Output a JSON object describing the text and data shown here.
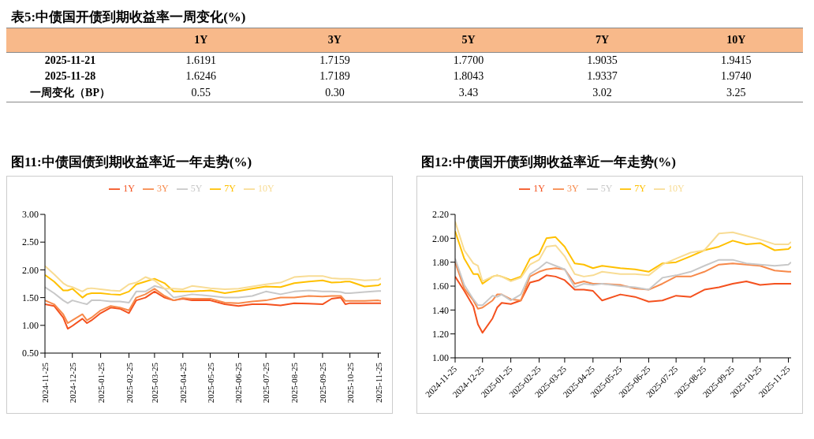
{
  "chart_data": [
    {
      "type": "heatmap",
      "title": "表5:中债国开债到期收益率一周变化(%)",
      "categories": [
        "1Y",
        "3Y",
        "5Y",
        "7Y",
        "10Y"
      ],
      "y_categories": [
        "2025-11-21",
        "2025-11-28",
        "一周变化（BP）"
      ],
      "cells": [
        [
          1.6191,
          1.7159,
          1.77,
          1.9035,
          1.9415
        ],
        [
          1.6246,
          1.7189,
          1.8043,
          1.9337,
          1.974
        ],
        [
          0.55,
          0.3,
          3.43,
          3.02,
          3.25
        ]
      ],
      "cell_labels": [
        [
          "1.6191",
          "1.7159",
          "1.7700",
          "1.9035",
          "1.9415"
        ],
        [
          "1.6246",
          "1.7189",
          "1.8043",
          "1.9337",
          "1.9740"
        ],
        [
          "0.55",
          "0.30",
          "3.43",
          "3.02",
          "3.25"
        ]
      ]
    },
    {
      "type": "line",
      "title": "图11:中债国债到期收益率近一年走势(%)",
      "legend": "top",
      "grid": false,
      "marker": "none",
      "line_style": "solid",
      "x": [
        "2024-11-25",
        "2024-12-05",
        "2024-12-15",
        "2024-12-20",
        "2024-12-25",
        "2025-01-05",
        "2025-01-10",
        "2025-01-15",
        "2025-01-25",
        "2025-02-05",
        "2025-02-15",
        "2025-02-25",
        "2025-03-05",
        "2025-03-15",
        "2025-03-25",
        "2025-04-05",
        "2025-04-15",
        "2025-04-25",
        "2025-05-05",
        "2025-05-25",
        "2025-06-10",
        "2025-06-25",
        "2025-07-10",
        "2025-07-25",
        "2025-08-10",
        "2025-08-25",
        "2025-09-10",
        "2025-09-25",
        "2025-10-05",
        "2025-10-15",
        "2025-10-20",
        "2025-10-25",
        "2025-11-10",
        "2025-11-25",
        "2025-11-28"
      ],
      "xlim": [
        "2024-11-25",
        "2025-11-28"
      ],
      "xticks": [
        "2024-11-25",
        "2024-12-25",
        "2025-01-25",
        "2025-02-25",
        "2025-03-25",
        "2025-04-25",
        "2025-05-25",
        "2025-06-25",
        "2025-07-25",
        "2025-08-25",
        "2025-09-25",
        "2025-10-25",
        "2025-11-25"
      ],
      "ylim": [
        0.5,
        3
      ],
      "yticks": [
        {
          "value": 0.5,
          "label": "0.50"
        },
        {
          "value": 1,
          "label": "1.00"
        },
        {
          "value": 1.5,
          "label": "1.50"
        },
        {
          "value": 2,
          "label": "2.00"
        },
        {
          "value": 2.5,
          "label": "2.50"
        },
        {
          "value": 3,
          "label": "3.00"
        }
      ],
      "series": [
        {
          "name": "1Y",
          "color": "#f4511e",
          "values": [
            1.38,
            1.35,
            1.14,
            0.94,
            0.99,
            1.12,
            1.04,
            1.09,
            1.22,
            1.32,
            1.3,
            1.22,
            1.45,
            1.5,
            1.61,
            1.5,
            1.45,
            1.48,
            1.45,
            1.45,
            1.38,
            1.35,
            1.38,
            1.38,
            1.36,
            1.4,
            1.39,
            1.38,
            1.48,
            1.5,
            1.38,
            1.4,
            1.4,
            1.4,
            1.4
          ]
        },
        {
          "name": "3Y",
          "color": "#f7894a",
          "values": [
            1.45,
            1.38,
            1.2,
            1.04,
            1.09,
            1.2,
            1.09,
            1.14,
            1.27,
            1.35,
            1.32,
            1.27,
            1.5,
            1.56,
            1.66,
            1.53,
            1.45,
            1.49,
            1.48,
            1.48,
            1.41,
            1.4,
            1.43,
            1.45,
            1.5,
            1.5,
            1.53,
            1.52,
            1.53,
            1.53,
            1.44,
            1.44,
            1.44,
            1.45,
            1.44
          ]
        },
        {
          "name": "5Y",
          "color": "#c8c8c8",
          "values": [
            1.69,
            1.58,
            1.45,
            1.4,
            1.45,
            1.4,
            1.38,
            1.45,
            1.45,
            1.43,
            1.43,
            1.41,
            1.61,
            1.61,
            1.71,
            1.66,
            1.5,
            1.53,
            1.56,
            1.53,
            1.5,
            1.5,
            1.53,
            1.61,
            1.56,
            1.61,
            1.63,
            1.61,
            1.61,
            1.6,
            1.58,
            1.58,
            1.6,
            1.62,
            1.62
          ]
        },
        {
          "name": "7Y",
          "color": "#ffc000",
          "values": [
            1.91,
            1.79,
            1.63,
            1.63,
            1.66,
            1.5,
            1.56,
            1.58,
            1.58,
            1.56,
            1.55,
            1.61,
            1.74,
            1.79,
            1.84,
            1.76,
            1.61,
            1.61,
            1.61,
            1.63,
            1.58,
            1.62,
            1.66,
            1.7,
            1.69,
            1.76,
            1.79,
            1.81,
            1.77,
            1.78,
            1.79,
            1.79,
            1.7,
            1.72,
            1.75
          ]
        },
        {
          "name": "10Y",
          "color": "#f8dc94",
          "values": [
            2.07,
            1.92,
            1.76,
            1.71,
            1.69,
            1.61,
            1.66,
            1.67,
            1.65,
            1.63,
            1.62,
            1.74,
            1.77,
            1.87,
            1.81,
            1.66,
            1.66,
            1.65,
            1.71,
            1.67,
            1.65,
            1.66,
            1.7,
            1.74,
            1.77,
            1.87,
            1.89,
            1.89,
            1.85,
            1.84,
            1.84,
            1.84,
            1.81,
            1.82,
            1.85
          ]
        }
      ]
    },
    {
      "type": "line",
      "title": "图12:中债国开债到期收益率近一年走势(%)",
      "legend": "top",
      "grid": false,
      "marker": "none",
      "line_style": "solid",
      "x": [
        "2024-11-25",
        "2024-12-05",
        "2024-12-15",
        "2024-12-20",
        "2024-12-25",
        "2025-01-05",
        "2025-01-10",
        "2025-01-15",
        "2025-01-25",
        "2025-02-05",
        "2025-02-15",
        "2025-02-25",
        "2025-03-05",
        "2025-03-15",
        "2025-03-25",
        "2025-04-05",
        "2025-04-15",
        "2025-04-25",
        "2025-05-05",
        "2025-05-25",
        "2025-06-10",
        "2025-06-25",
        "2025-07-10",
        "2025-07-25",
        "2025-08-10",
        "2025-08-25",
        "2025-09-10",
        "2025-09-25",
        "2025-10-10",
        "2025-10-25",
        "2025-11-10",
        "2025-11-25",
        "2025-11-28"
      ],
      "xlim": [
        "2024-11-25",
        "2025-11-28"
      ],
      "xticks": [
        "2024-11-25",
        "2024-12-25",
        "2025-01-25",
        "2025-02-25",
        "2025-03-25",
        "2025-04-25",
        "2025-05-25",
        "2025-06-25",
        "2025-07-25",
        "2025-08-25",
        "2025-09-25",
        "2025-10-25",
        "2025-11-25"
      ],
      "ylim": [
        1,
        2.2
      ],
      "yticks": [
        {
          "value": 1,
          "label": "1.00"
        },
        {
          "value": 1.2,
          "label": "1.20"
        },
        {
          "value": 1.4,
          "label": "1.40"
        },
        {
          "value": 1.6,
          "label": "1.60"
        },
        {
          "value": 1.8,
          "label": "1.80"
        },
        {
          "value": 2,
          "label": "2.00"
        },
        {
          "value": 2.2,
          "label": "2.20"
        }
      ],
      "series": [
        {
          "name": "1Y",
          "color": "#f4511e",
          "values": [
            1.68,
            1.56,
            1.43,
            1.28,
            1.21,
            1.33,
            1.42,
            1.46,
            1.45,
            1.48,
            1.63,
            1.65,
            1.69,
            1.68,
            1.65,
            1.57,
            1.57,
            1.56,
            1.48,
            1.53,
            1.51,
            1.47,
            1.48,
            1.52,
            1.51,
            1.57,
            1.59,
            1.62,
            1.64,
            1.61,
            1.62,
            1.62,
            1.62
          ]
        },
        {
          "name": "3Y",
          "color": "#f7894a",
          "values": [
            1.8,
            1.58,
            1.48,
            1.41,
            1.42,
            1.48,
            1.53,
            1.53,
            1.49,
            1.48,
            1.68,
            1.72,
            1.74,
            1.75,
            1.74,
            1.62,
            1.64,
            1.62,
            1.62,
            1.61,
            1.58,
            1.57,
            1.62,
            1.68,
            1.68,
            1.72,
            1.78,
            1.79,
            1.78,
            1.77,
            1.73,
            1.72,
            1.72
          ]
        },
        {
          "name": "5Y",
          "color": "#c8c8c8",
          "values": [
            1.83,
            1.61,
            1.49,
            1.44,
            1.44,
            1.52,
            1.51,
            1.53,
            1.48,
            1.53,
            1.7,
            1.75,
            1.8,
            1.77,
            1.74,
            1.59,
            1.62,
            1.61,
            1.62,
            1.6,
            1.59,
            1.57,
            1.67,
            1.69,
            1.72,
            1.77,
            1.82,
            1.82,
            1.79,
            1.78,
            1.77,
            1.78,
            1.8
          ]
        },
        {
          "name": "7Y",
          "color": "#ffc000",
          "values": [
            2.06,
            1.83,
            1.7,
            1.7,
            1.62,
            1.68,
            1.69,
            1.68,
            1.65,
            1.68,
            1.83,
            1.87,
            2.0,
            2.01,
            1.93,
            1.79,
            1.78,
            1.75,
            1.77,
            1.75,
            1.74,
            1.72,
            1.79,
            1.8,
            1.85,
            1.9,
            1.93,
            1.98,
            1.95,
            1.96,
            1.9,
            1.91,
            1.93
          ]
        },
        {
          "name": "10Y",
          "color": "#f8dc94",
          "values": [
            2.14,
            1.9,
            1.79,
            1.77,
            1.64,
            1.68,
            1.69,
            1.68,
            1.64,
            1.67,
            1.78,
            1.82,
            1.93,
            1.94,
            1.85,
            1.7,
            1.68,
            1.69,
            1.72,
            1.7,
            1.7,
            1.69,
            1.78,
            1.83,
            1.88,
            1.9,
            2.04,
            2.05,
            2.02,
            1.99,
            1.95,
            1.95,
            1.97
          ]
        }
      ]
    }
  ]
}
